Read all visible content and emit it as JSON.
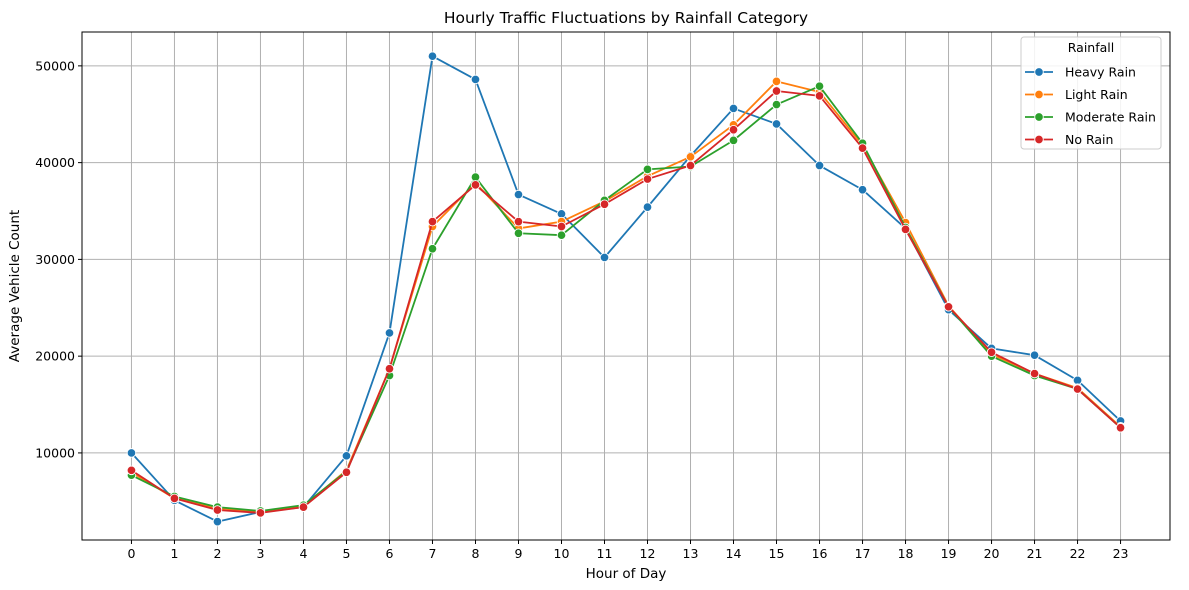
{
  "chart_data": {
    "type": "line",
    "title": "Hourly Traffic Fluctuations by Rainfall Category",
    "xlabel": "Hour of Day",
    "ylabel": "Average Vehicle Count",
    "x": [
      0,
      1,
      2,
      3,
      4,
      5,
      6,
      7,
      8,
      9,
      10,
      11,
      12,
      13,
      14,
      15,
      16,
      17,
      18,
      19,
      20,
      21,
      22,
      23
    ],
    "xlim": [
      -1.15,
      24.15
    ],
    "ylim": [
      1000,
      53500
    ],
    "yticks": [
      10000,
      20000,
      30000,
      40000,
      50000
    ],
    "grid": true,
    "legend": {
      "title": "Rainfall",
      "placement": "top-right"
    },
    "series": [
      {
        "name": "Heavy Rain",
        "color": "#1f77b4",
        "values": [
          10000,
          5100,
          2900,
          3900,
          4400,
          9700,
          22400,
          51000,
          48600,
          36700,
          34700,
          30200,
          35400,
          40700,
          45600,
          44000,
          39700,
          37200,
          33200,
          24800,
          20800,
          20100,
          17500,
          13300
        ]
      },
      {
        "name": "Light Rain",
        "color": "#ff7f0e",
        "values": [
          8000,
          5300,
          4300,
          3900,
          4500,
          8200,
          18700,
          33400,
          37900,
          33200,
          33900,
          36000,
          38600,
          40600,
          43900,
          48400,
          47300,
          41800,
          33800,
          25200,
          20200,
          18200,
          16700,
          12700
        ]
      },
      {
        "name": "Moderate Rain",
        "color": "#2ca02c",
        "values": [
          7700,
          5500,
          4400,
          4000,
          4600,
          8100,
          18000,
          31100,
          38500,
          32700,
          32500,
          36100,
          39300,
          39600,
          42300,
          46000,
          47900,
          42000,
          33300,
          25100,
          20000,
          18000,
          16600,
          12600
        ]
      },
      {
        "name": "No Rain",
        "color": "#d62728",
        "values": [
          8200,
          5300,
          4100,
          3800,
          4400,
          8000,
          18700,
          33900,
          37700,
          33900,
          33400,
          35700,
          38300,
          39700,
          43400,
          47400,
          46900,
          41500,
          33100,
          25100,
          20400,
          18200,
          16600,
          12600
        ]
      }
    ]
  }
}
